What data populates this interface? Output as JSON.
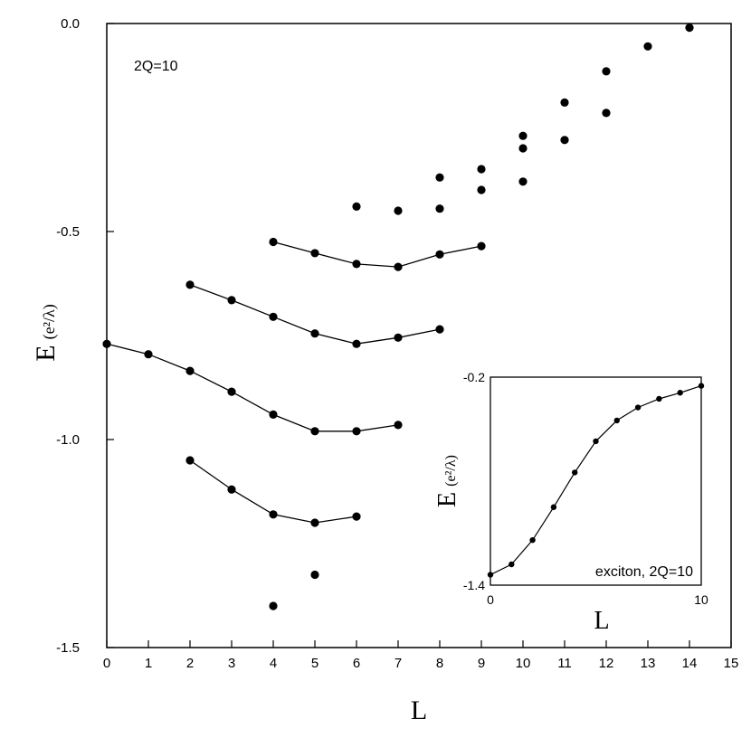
{
  "chart_data": [
    {
      "type": "scatter",
      "annotation": "2Q=10",
      "xlabel": "L",
      "ylabel": "E",
      "ylabel_unit": "(e²/λ)",
      "xlim": [
        0,
        15
      ],
      "ylim": [
        -1.5,
        0.0
      ],
      "x_ticks": [
        0,
        1,
        2,
        3,
        4,
        5,
        6,
        7,
        8,
        9,
        10,
        11,
        12,
        13,
        14,
        15
      ],
      "y_ticks": [
        {
          "value": 0.0,
          "label": "0.0"
        },
        {
          "value": -0.5,
          "label": "-0.5"
        },
        {
          "value": -1.0,
          "label": "-1.0"
        },
        {
          "value": -1.5,
          "label": "-1.5"
        }
      ],
      "grid": false,
      "lines": [
        {
          "x": [
            4,
            5,
            6,
            7,
            8,
            9
          ],
          "y": [
            -0.525,
            -0.552,
            -0.578,
            -0.585,
            -0.555,
            -0.535
          ]
        },
        {
          "x": [
            2,
            3,
            4,
            5,
            6,
            7,
            8
          ],
          "y": [
            -0.628,
            -0.665,
            -0.705,
            -0.745,
            -0.77,
            -0.755,
            -0.735
          ]
        },
        {
          "x": [
            0,
            1,
            2,
            3,
            4,
            5,
            6,
            7
          ],
          "y": [
            -0.77,
            -0.795,
            -0.835,
            -0.885,
            -0.94,
            -0.98,
            -0.98,
            -0.965
          ]
        },
        {
          "x": [
            2,
            3,
            4,
            5,
            6
          ],
          "y": [
            -1.05,
            -1.12,
            -1.18,
            -1.2,
            -1.185
          ]
        }
      ],
      "points": {
        "x": [
          4,
          5,
          6,
          7,
          8,
          8,
          9,
          9,
          10,
          10,
          10,
          11,
          11,
          12,
          12,
          13,
          14
        ],
        "y": [
          -1.4,
          -1.325,
          -0.44,
          -0.45,
          -0.37,
          -0.445,
          -0.35,
          -0.4,
          -0.27,
          -0.3,
          -0.38,
          -0.19,
          -0.28,
          -0.115,
          -0.215,
          -0.055,
          -0.01
        ]
      }
    },
    {
      "type": "line",
      "annotation": "exciton, 2Q=10",
      "xlabel": "L",
      "ylabel": "E",
      "ylabel_unit": "(e²/λ)",
      "xlim": [
        0,
        10
      ],
      "ylim": [
        -1.4,
        -0.2
      ],
      "x_ticks": [
        {
          "value": 0,
          "label": "0"
        },
        {
          "value": 10,
          "label": "10"
        }
      ],
      "y_ticks": [
        {
          "value": -0.2,
          "label": "-0.2"
        },
        {
          "value": -1.4,
          "label": "-1.4"
        }
      ],
      "grid": false,
      "series": [
        {
          "x": [
            0,
            1,
            2,
            3,
            4,
            5,
            6,
            7,
            8,
            9,
            10
          ],
          "y": [
            -1.34,
            -1.28,
            -1.14,
            -0.95,
            -0.75,
            -0.57,
            -0.45,
            -0.375,
            -0.325,
            -0.29,
            -0.25
          ]
        }
      ]
    }
  ]
}
